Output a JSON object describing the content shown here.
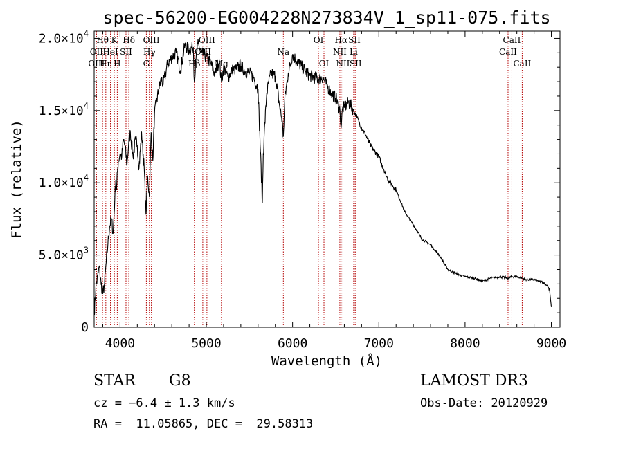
{
  "chart_data": {
    "type": "line",
    "title": "spec-56200-EG004228N273834V_1_sp11-075.fits",
    "xlabel": "Wavelength (Å)",
    "ylabel": "Flux (relative)",
    "xlim": [
      3700,
      9100
    ],
    "ylim": [
      0,
      20500
    ],
    "x_ticks": [
      4000,
      5000,
      6000,
      7000,
      8000,
      9000
    ],
    "y_ticks": [
      {
        "value": 0,
        "mant": "0",
        "exp": ""
      },
      {
        "value": 5000,
        "mant": "5.0×10",
        "exp": "3"
      },
      {
        "value": 10000,
        "mant": "1.0×10",
        "exp": "4"
      },
      {
        "value": 15000,
        "mant": "1.5×10",
        "exp": "4"
      },
      {
        "value": 20000,
        "mant": "2.0×10",
        "exp": "4"
      }
    ],
    "grid": false,
    "series": [
      {
        "x": [
          3700,
          3720,
          3740,
          3760,
          3780,
          3800,
          3820,
          3840,
          3860,
          3880,
          3900,
          3920,
          3940,
          3950,
          3960,
          3970,
          3980,
          4000,
          4020,
          4040,
          4060,
          4080,
          4100,
          4120,
          4150,
          4180,
          4200,
          4220,
          4250,
          4280,
          4300,
          4320,
          4340,
          4360,
          4380,
          4400,
          4420,
          4450,
          4480,
          4500,
          4550,
          4600,
          4650,
          4700,
          4750,
          4800,
          4850,
          4861,
          4880,
          4900,
          4950,
          5000,
          5050,
          5100,
          5150,
          5175,
          5200,
          5250,
          5300,
          5350,
          5400,
          5450,
          5500,
          5550,
          5600,
          5650,
          5660,
          5670,
          5700,
          5750,
          5800,
          5850,
          5880,
          5890,
          5896,
          5910,
          5950,
          6000,
          6050,
          6100,
          6150,
          6200,
          6250,
          6300,
          6350,
          6400,
          6450,
          6500,
          6550,
          6563,
          6580,
          6600,
          6650,
          6700,
          6750,
          6800,
          6850,
          6900,
          6950,
          7000,
          7100,
          7200,
          7300,
          7400,
          7500,
          7600,
          7700,
          7800,
          7900,
          8000,
          8100,
          8200,
          8300,
          8400,
          8500,
          8542,
          8600,
          8662,
          8700,
          8800,
          8900,
          8950,
          8980,
          9000
        ],
        "y": [
          900,
          2800,
          3500,
          4200,
          3000,
          2300,
          3000,
          4500,
          5800,
          7000,
          7500,
          6500,
          9000,
          10200,
          9500,
          10800,
          11500,
          12000,
          11800,
          13000,
          12400,
          11200,
          12800,
          13500,
          11800,
          13000,
          12600,
          11000,
          13500,
          11000,
          7800,
          10500,
          9000,
          13500,
          11500,
          14800,
          15500,
          16500,
          17200,
          16800,
          18200,
          18700,
          19000,
          17800,
          19500,
          19200,
          19400,
          17000,
          18500,
          19600,
          19000,
          18700,
          18300,
          17500,
          18500,
          17000,
          18000,
          17300,
          17800,
          17900,
          18100,
          17700,
          17600,
          17300,
          16500,
          8600,
          12000,
          13200,
          16200,
          17600,
          17400,
          15300,
          14300,
          13200,
          13600,
          15800,
          17600,
          18900,
          18400,
          18100,
          17700,
          17400,
          17300,
          17200,
          17300,
          16700,
          16200,
          15900,
          15000,
          13800,
          15200,
          15200,
          15600,
          15100,
          14500,
          13800,
          13300,
          12600,
          12200,
          11800,
          10300,
          9500,
          8000,
          7100,
          6100,
          5700,
          5000,
          4000,
          3700,
          3500,
          3400,
          3200,
          3400,
          3500,
          3400,
          3500,
          3500,
          3400,
          3300,
          3300,
          3100,
          2900,
          2600,
          1400
        ]
      }
    ],
    "line_markers": [
      {
        "label": "Hθ",
        "x": 3797,
        "row": 1
      },
      {
        "label": "OII",
        "x": 3727,
        "row": 2
      },
      {
        "label": "OIII",
        "x": 3727,
        "row": 3
      },
      {
        "label": "K",
        "x": 3934,
        "row": 1
      },
      {
        "label": "HeI",
        "x": 3889,
        "row": 2
      },
      {
        "label": "Hη",
        "x": 3835,
        "row": 3
      },
      {
        "label": "Hδ",
        "x": 4102,
        "row": 1
      },
      {
        "label": "SII",
        "x": 4069,
        "row": 2
      },
      {
        "label": "H",
        "x": 3968,
        "row": 3
      },
      {
        "label": "OIII",
        "x": 4363,
        "row": 1
      },
      {
        "label": "Hγ",
        "x": 4340,
        "row": 2
      },
      {
        "label": "G",
        "x": 4305,
        "row": 3
      },
      {
        "label": "OIII",
        "x": 5007,
        "row": 1
      },
      {
        "label": "OIII",
        "x": 4959,
        "row": 2
      },
      {
        "label": "Hβ",
        "x": 4861,
        "row": 3
      },
      {
        "label": "Mg",
        "x": 5175,
        "row": 3
      },
      {
        "label": "Na",
        "x": 5893,
        "row": 2
      },
      {
        "label": "OI",
        "x": 6300,
        "row": 1
      },
      {
        "label": "OI",
        "x": 6364,
        "row": 3
      },
      {
        "label": "Hα",
        "x": 6563,
        "row": 1
      },
      {
        "label": "SII",
        "x": 6717,
        "row": 1
      },
      {
        "label": "NII",
        "x": 6548,
        "row": 2
      },
      {
        "label": "Li",
        "x": 6708,
        "row": 2
      },
      {
        "label": "NII",
        "x": 6584,
        "row": 3
      },
      {
        "label": "SII",
        "x": 6731,
        "row": 3
      },
      {
        "label": "CaII",
        "x": 8542,
        "row": 1
      },
      {
        "label": "CaII",
        "x": 8498,
        "row": 2
      },
      {
        "label": "CaII",
        "x": 8662,
        "row": 3
      }
    ]
  },
  "info": {
    "class_label": "STAR",
    "subclass": "G8",
    "cz": "cz = −6.4 ± 1.3 km/s",
    "radec": "RA =  11.05865, DEC =  29.58313",
    "survey": "LAMOST DR3",
    "obs_date": "Obs-Date: 20120929"
  }
}
